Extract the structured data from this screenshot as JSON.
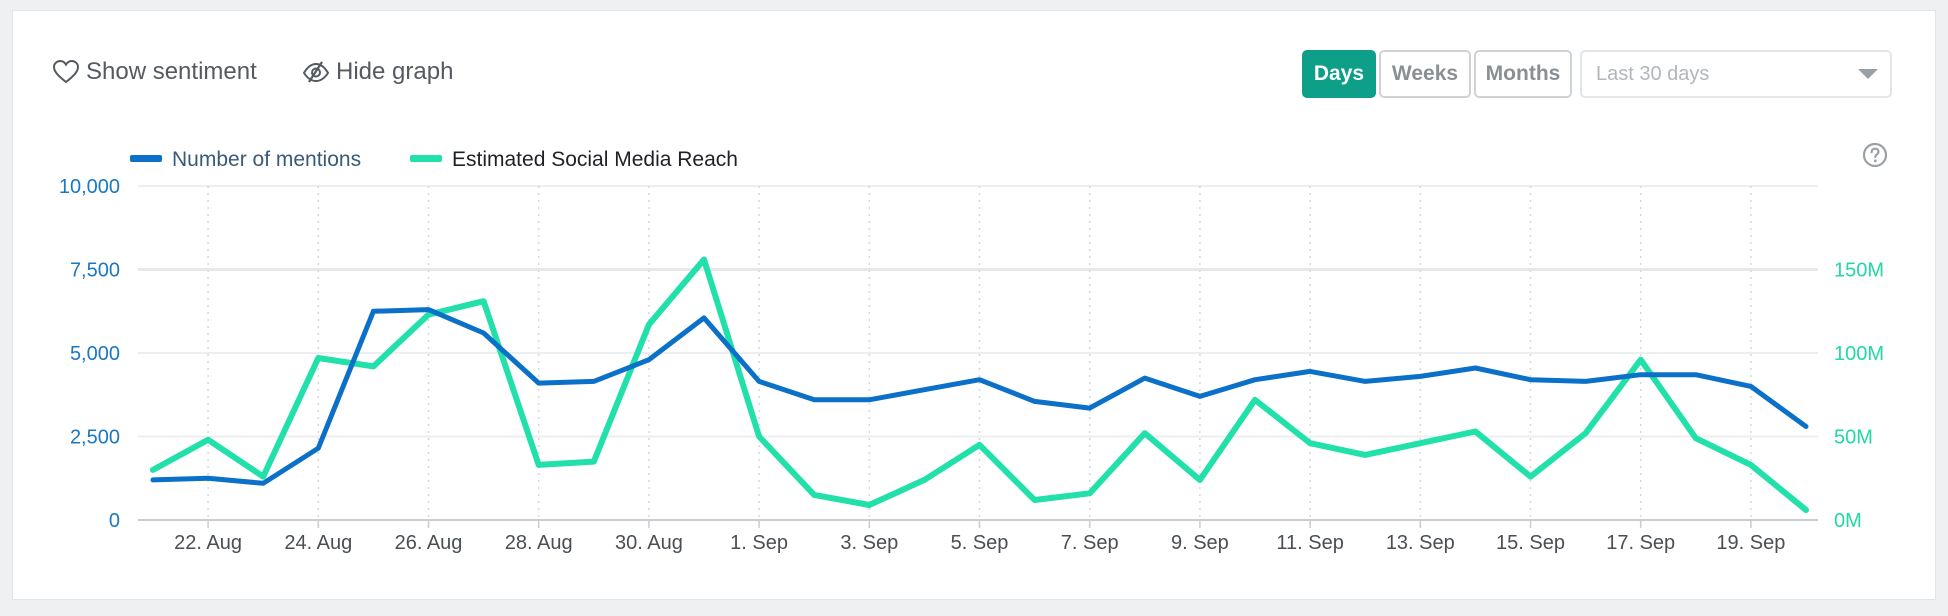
{
  "toolbar": {
    "show_sentiment": "Show sentiment",
    "hide_graph": "Hide graph"
  },
  "period": {
    "buttons": [
      "Days",
      "Weeks",
      "Months"
    ],
    "active": "Days",
    "range_value": "Last 30 days"
  },
  "colors": {
    "mentions": "#0b70c8",
    "reach": "#22e0a9",
    "active_button": "#0d9f88"
  },
  "icons": {
    "sentiment": "heart-outline-icon",
    "hide_graph": "eye-slash-icon",
    "dropdown": "caret-down-icon",
    "help": "question-circle-icon"
  },
  "chart_data": {
    "type": "line",
    "legend": [
      "Number of mentions",
      "Estimated Social Media Reach"
    ],
    "x_tick_labels": [
      "22. Aug",
      "24. Aug",
      "26. Aug",
      "28. Aug",
      "30. Aug",
      "1. Sep",
      "3. Sep",
      "5. Sep",
      "7. Sep",
      "9. Sep",
      "11. Sep",
      "13. Sep",
      "15. Sep",
      "17. Sep",
      "19. Sep"
    ],
    "x": [
      "21 Aug",
      "22 Aug",
      "23 Aug",
      "24 Aug",
      "25 Aug",
      "26 Aug",
      "27 Aug",
      "28 Aug",
      "29 Aug",
      "30 Aug",
      "31 Aug",
      "1 Sep",
      "2 Sep",
      "3 Sep",
      "4 Sep",
      "5 Sep",
      "6 Sep",
      "7 Sep",
      "8 Sep",
      "9 Sep",
      "10 Sep",
      "11 Sep",
      "12 Sep",
      "13 Sep",
      "14 Sep",
      "15 Sep",
      "16 Sep",
      "17 Sep",
      "18 Sep",
      "19 Sep",
      "20 Sep"
    ],
    "series": [
      {
        "name": "Number of mentions",
        "axis": "left",
        "values": [
          1200,
          1250,
          1100,
          2150,
          6250,
          6300,
          5600,
          4100,
          4150,
          4800,
          6050,
          4150,
          3600,
          3600,
          3900,
          4200,
          3550,
          3350,
          4250,
          3700,
          4200,
          4450,
          4150,
          4300,
          4550,
          4200,
          4150,
          4350,
          4350,
          4000,
          2800
        ]
      },
      {
        "name": "Estimated Social Media Reach",
        "axis": "right",
        "values": [
          30000000,
          48000000,
          26000000,
          97000000,
          92000000,
          123000000,
          131000000,
          33000000,
          35000000,
          117000000,
          156000000,
          50000000,
          15000000,
          9000000,
          24000000,
          45000000,
          12000000,
          16000000,
          52000000,
          24000000,
          72000000,
          46000000,
          39000000,
          46000000,
          53000000,
          26000000,
          52000000,
          96000000,
          49000000,
          33000000,
          6000000
        ]
      }
    ],
    "y_left": {
      "ticks": [
        "0",
        "2,500",
        "5,000",
        "7,500",
        "10,000"
      ],
      "range": [
        0,
        10000
      ]
    },
    "y_right": {
      "ticks": [
        "0M",
        "50M",
        "100M",
        "150M"
      ],
      "range": [
        0,
        200000000
      ]
    },
    "grid": true,
    "legend_position": "top-left"
  }
}
